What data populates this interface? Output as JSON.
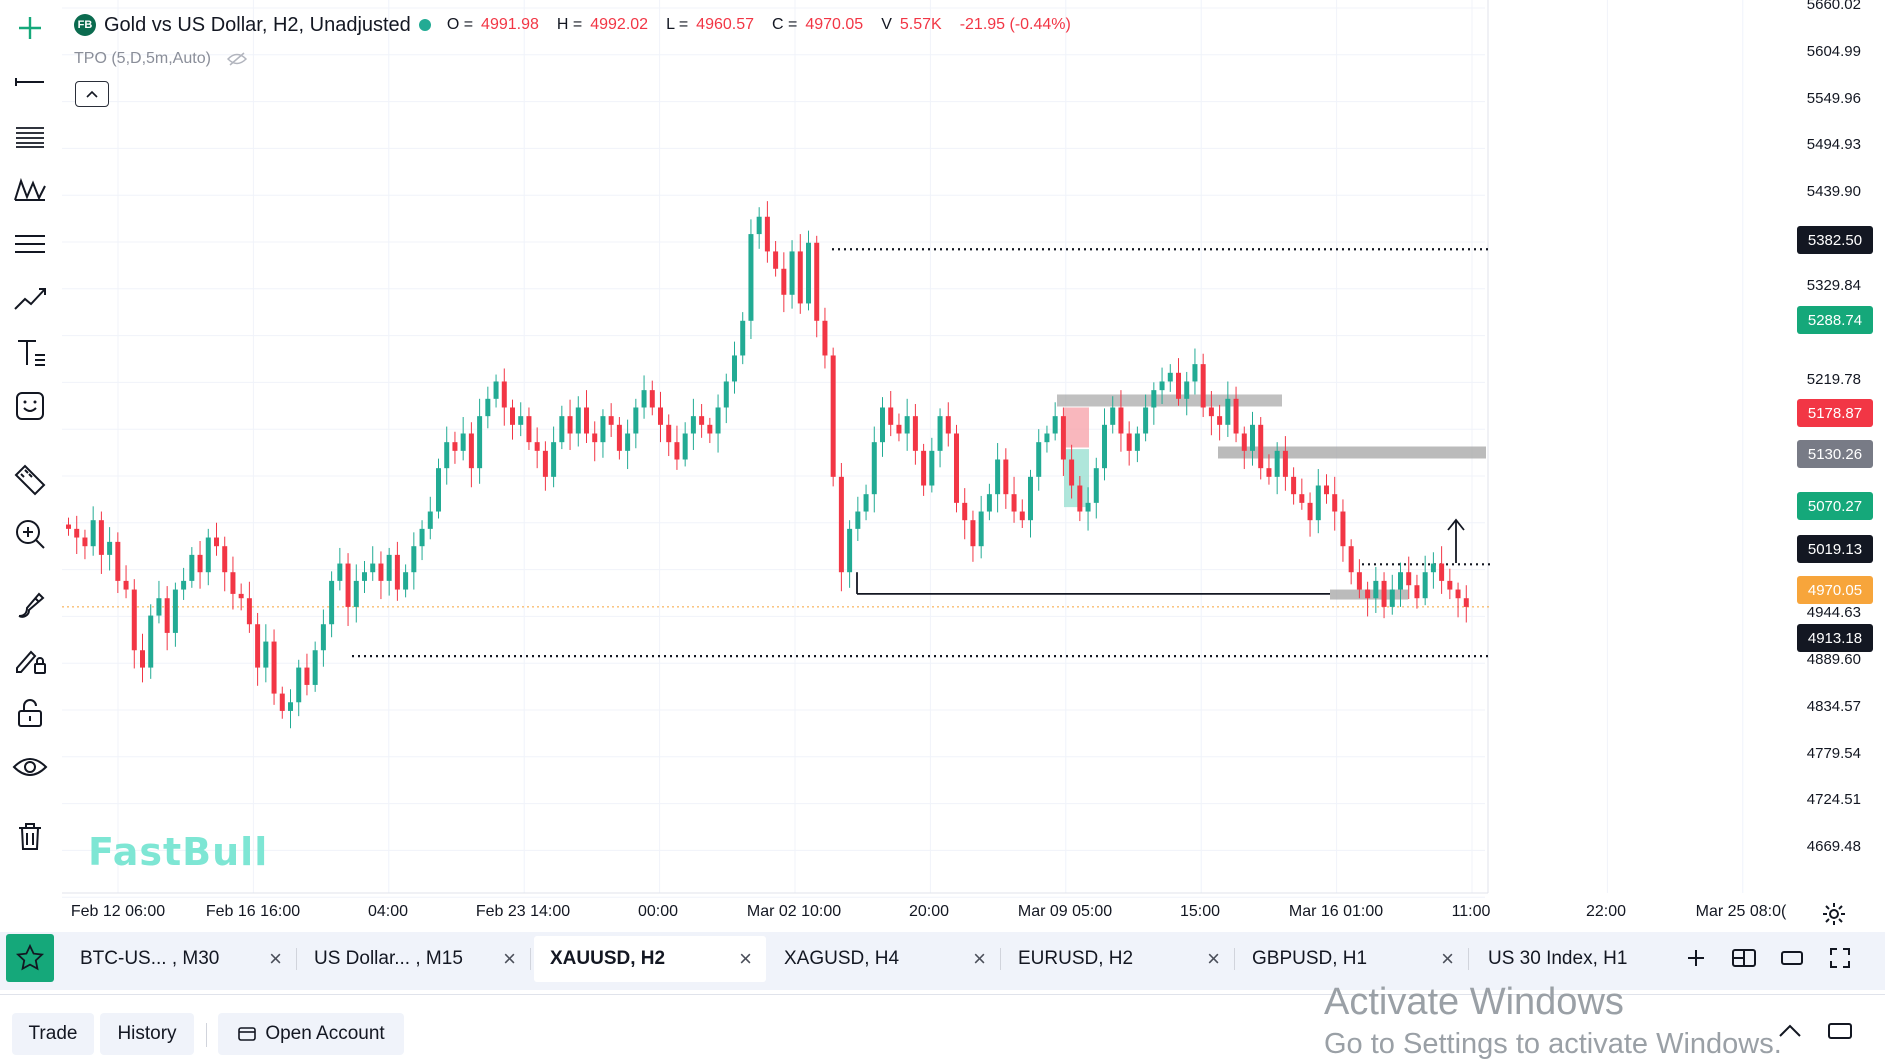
{
  "header": {
    "badge": "FB",
    "title": "Gold vs US Dollar, H2, Unadjusted",
    "ohlc": [
      {
        "k": "O =",
        "v": "4991.98"
      },
      {
        "k": "H =",
        "v": "4992.02"
      },
      {
        "k": "L =",
        "v": "4960.57"
      },
      {
        "k": "C =",
        "v": "4970.05"
      },
      {
        "k": "V",
        "v": "5.57K"
      }
    ],
    "change": "-21.95 (-0.44%)",
    "indicator": "TPO (5,D,5m,Auto)"
  },
  "toolbar": {
    "icons": [
      "crosshair-icon",
      "horizontal-line-icon",
      "fib-lines-icon",
      "pattern-icon",
      "channel-icon",
      "trend-line-icon",
      "text-icon",
      "emoji-icon",
      "ruler-icon",
      "zoom-in-icon",
      "brush-icon",
      "lock-drawing-icon",
      "lock-icon",
      "eye-icon",
      "trash-icon"
    ]
  },
  "price_axis": {
    "ticks": [
      "5660.02",
      "5604.99",
      "5549.96",
      "5494.93",
      "5439.90",
      "5329.84",
      "5219.78",
      "4944.63",
      "4889.60",
      "4834.57",
      "4779.54",
      "4724.51",
      "4669.48"
    ],
    "badges": [
      {
        "label": "5382.50",
        "color": "#131722"
      },
      {
        "label": "5288.74",
        "color": "#15a87a"
      },
      {
        "label": "5178.87",
        "color": "#f23645"
      },
      {
        "label": "5130.26",
        "color": "#787b86"
      },
      {
        "label": "5070.27",
        "color": "#15a87a"
      },
      {
        "label": "5019.13",
        "color": "#131722"
      },
      {
        "label": "4970.05",
        "color": "#f7a53b"
      },
      {
        "label": "4913.18",
        "color": "#131722"
      }
    ]
  },
  "time_axis": {
    "ticks": [
      "Feb 12 06:00",
      "Feb 16 16:00",
      "04:00",
      "Feb 23 14:00",
      "00:00",
      "Mar 02 10:00",
      "20:00",
      "Mar 09 05:00",
      "15:00",
      "Mar 16 01:00",
      "11:00",
      "22:00",
      "Mar 25 08:0("
    ]
  },
  "watermark": "FastBull",
  "tabs": [
    {
      "label": "BTC-US...  , M30",
      "active": false
    },
    {
      "label": "US Dollar...  , M15",
      "active": false
    },
    {
      "label": "XAUUSD, H2",
      "active": true
    },
    {
      "label": "XAGUSD, H4",
      "active": false
    },
    {
      "label": "EURUSD, H2",
      "active": false
    },
    {
      "label": "GBPUSD, H1",
      "active": false
    },
    {
      "label": "US 30 Index, H1",
      "active": false
    }
  ],
  "bottom": {
    "trade": "Trade",
    "history": "History",
    "open_account": "Open Account"
  },
  "windows_notice": {
    "line1": "Activate Windows",
    "line2": "Go to Settings to activate Windows."
  },
  "colors": {
    "up": "#22ab94",
    "down": "#f23645",
    "accent": "#15a87a"
  },
  "chart_data": {
    "type": "candlestick",
    "ylim": [
      4640,
      5670
    ],
    "levels": [
      5382.5,
      5019.13,
      4913.18,
      4970.05
    ],
    "close_path": [
      5060,
      5050,
      5040,
      5070,
      5030,
      5045,
      5000,
      4990,
      4920,
      4900,
      4960,
      4980,
      4940,
      4990,
      5000,
      5030,
      5010,
      5050,
      5040,
      5010,
      4985,
      4980,
      4950,
      4900,
      4930,
      4870,
      4850,
      4860,
      4900,
      4880,
      4920,
      4950,
      5000,
      5020,
      4970,
      5000,
      5010,
      5020,
      5000,
      5030,
      4990,
      5010,
      5040,
      5060,
      5080,
      5130,
      5160,
      5150,
      5170,
      5130,
      5190,
      5210,
      5230,
      5200,
      5180,
      5190,
      5160,
      5150,
      5120,
      5160,
      5190,
      5170,
      5200,
      5170,
      5160,
      5190,
      5180,
      5150,
      5170,
      5200,
      5220,
      5200,
      5180,
      5160,
      5140,
      5170,
      5190,
      5180,
      5170,
      5200,
      5230,
      5260,
      5300,
      5400,
      5420,
      5380,
      5360,
      5330,
      5380,
      5320,
      5390,
      5300,
      5260,
      5120,
      5010,
      5060,
      5080,
      5100,
      5160,
      5200,
      5180,
      5170,
      5190,
      5150,
      5110,
      5150,
      5190,
      5170,
      5090,
      5070,
      5040,
      5080,
      5100,
      5140,
      5100,
      5080,
      5070,
      5120,
      5160,
      5170,
      5190,
      5140,
      5110,
      5080,
      5090,
      5130,
      5180,
      5200,
      5170,
      5150,
      5170,
      5200,
      5220,
      5230,
      5240,
      5210,
      5230,
      5250,
      5200,
      5190,
      5180,
      5210,
      5170,
      5150,
      5180,
      5130,
      5120,
      5150,
      5120,
      5100,
      5090,
      5070,
      5110,
      5100,
      5080,
      5040,
      5010,
      4990,
      4980,
      5000,
      4970,
      4990,
      5010,
      4995,
      4980,
      5010,
      5020,
      5000,
      4990,
      4980,
      4970
    ]
  }
}
